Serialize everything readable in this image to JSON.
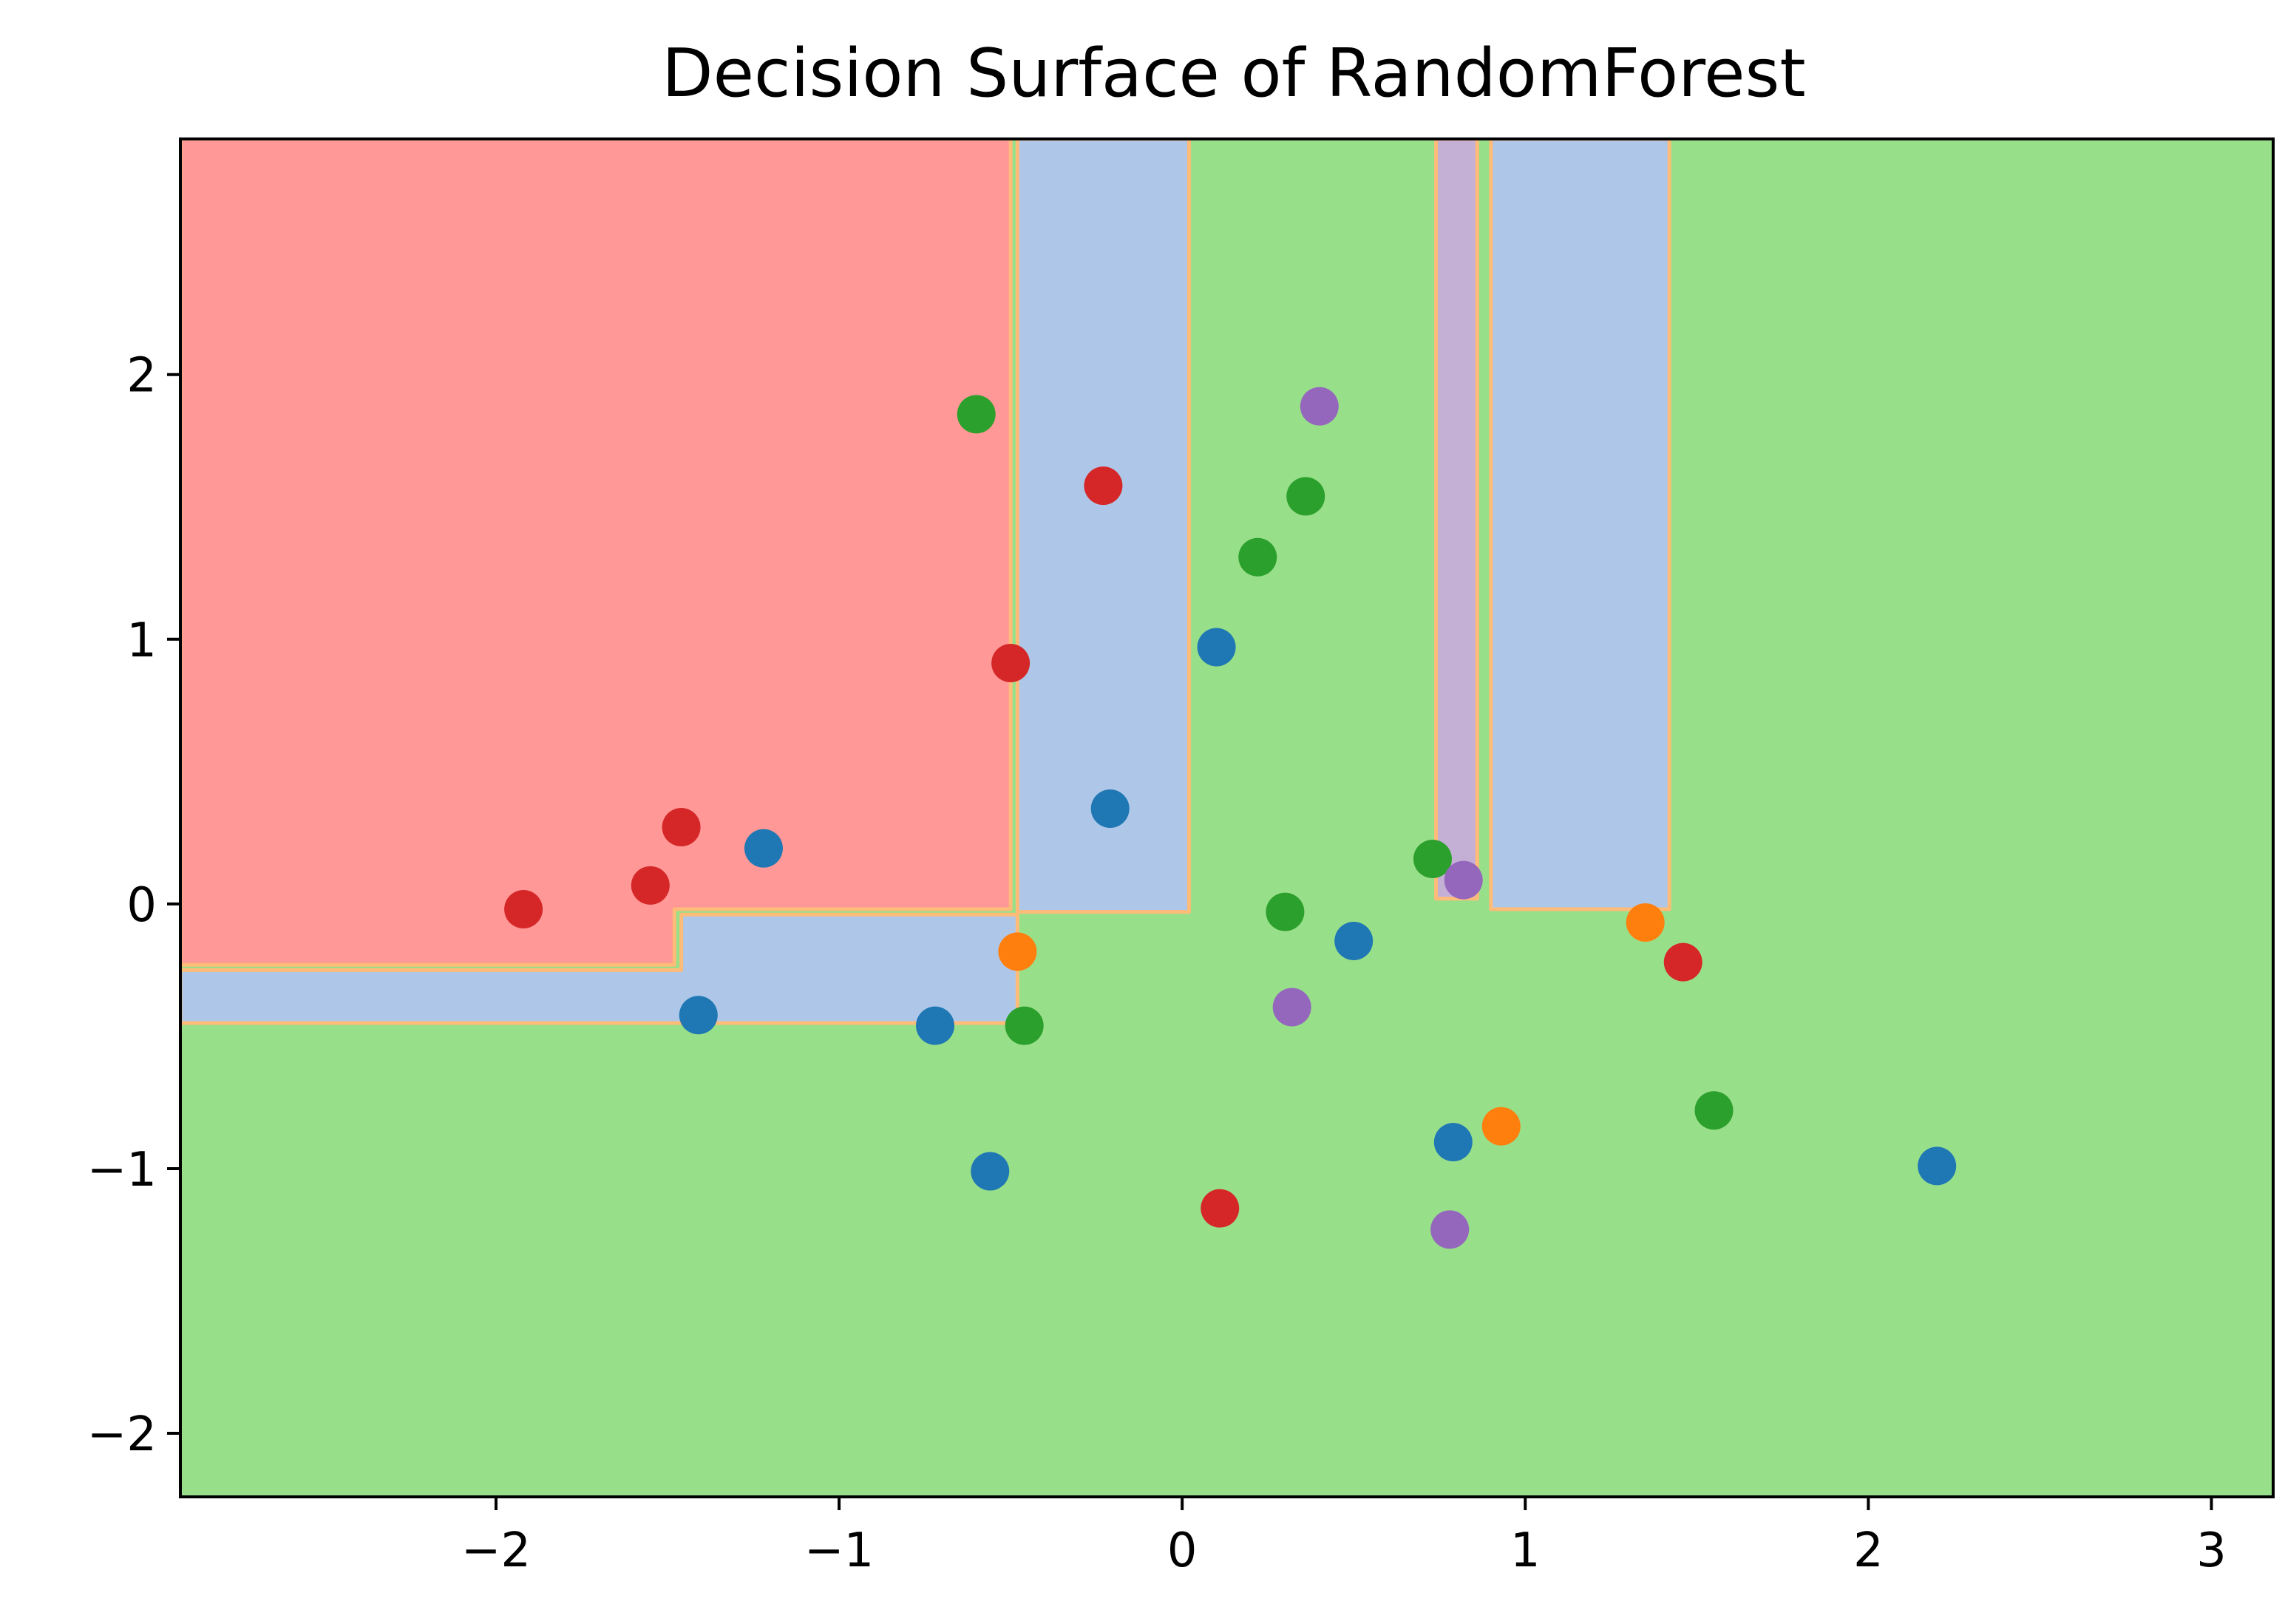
{
  "chart_data": {
    "type": "scatter",
    "title": "Decision Surface of RandomForest",
    "xlabel": "",
    "ylabel": "",
    "xlim": [
      -2.92,
      3.18
    ],
    "ylim": [
      -2.24,
      2.89
    ],
    "grid": false,
    "x_ticks": [
      -2,
      -1,
      0,
      1,
      2,
      3
    ],
    "x_tick_labels": [
      "−2",
      "−1",
      "0",
      "1",
      "2",
      "3"
    ],
    "y_ticks": [
      -2,
      -1,
      0,
      1,
      2
    ],
    "y_tick_labels": [
      "−2",
      "−1",
      "0",
      "1",
      "2"
    ],
    "region_colors": {
      "red": "#ff9896",
      "blue": "#aec7e8",
      "green": "#98df8a",
      "purple": "#c5b0d5",
      "boundary": "#ffbb78"
    },
    "decision_regions": [
      {
        "class": "red",
        "polygon": [
          [
            -2.92,
            2.89
          ],
          [
            -0.5,
            2.89
          ],
          [
            -0.5,
            -0.02
          ],
          [
            -1.48,
            -0.02
          ],
          [
            -1.48,
            -0.23
          ],
          [
            -2.92,
            -0.23
          ]
        ]
      },
      {
        "class": "blue",
        "polygon": [
          [
            -0.48,
            2.89
          ],
          [
            0.02,
            2.89
          ],
          [
            0.02,
            -0.03
          ],
          [
            -0.48,
            -0.03
          ]
        ]
      },
      {
        "class": "blue",
        "polygon": [
          [
            -2.92,
            -0.25
          ],
          [
            -1.46,
            -0.25
          ],
          [
            -1.46,
            -0.04
          ],
          [
            -0.48,
            -0.04
          ],
          [
            -0.48,
            -0.45
          ],
          [
            -2.92,
            -0.45
          ]
        ]
      },
      {
        "class": "purple",
        "polygon": [
          [
            0.74,
            2.89
          ],
          [
            0.86,
            2.89
          ],
          [
            0.86,
            0.02
          ],
          [
            0.74,
            0.02
          ]
        ]
      },
      {
        "class": "blue",
        "polygon": [
          [
            0.9,
            2.89
          ],
          [
            1.42,
            2.89
          ],
          [
            1.42,
            -0.02
          ],
          [
            0.9,
            -0.02
          ]
        ]
      }
    ],
    "series": [
      {
        "color": "#1f77b4",
        "points": [
          [
            -1.22,
            0.21
          ],
          [
            -1.41,
            -0.42
          ],
          [
            -0.72,
            -0.46
          ],
          [
            -0.56,
            -1.01
          ],
          [
            -0.21,
            0.36
          ],
          [
            0.1,
            0.97
          ],
          [
            0.5,
            -0.14
          ],
          [
            0.79,
            -0.9
          ],
          [
            2.2,
            -0.99
          ]
        ]
      },
      {
        "color": "#ff7f0e",
        "points": [
          [
            -0.48,
            -0.18
          ],
          [
            0.93,
            -0.84
          ],
          [
            1.35,
            -0.07
          ]
        ]
      },
      {
        "color": "#2ca02c",
        "points": [
          [
            -0.6,
            1.85
          ],
          [
            0.22,
            1.31
          ],
          [
            0.36,
            1.54
          ],
          [
            -0.46,
            -0.46
          ],
          [
            0.3,
            -0.03
          ],
          [
            0.73,
            0.17
          ],
          [
            1.55,
            -0.78
          ]
        ]
      },
      {
        "color": "#d62728",
        "points": [
          [
            -0.23,
            1.58
          ],
          [
            -0.5,
            0.91
          ],
          [
            -1.46,
            0.29
          ],
          [
            -1.55,
            0.07
          ],
          [
            -1.92,
            -0.02
          ],
          [
            0.11,
            -1.15
          ],
          [
            1.46,
            -0.22
          ]
        ]
      },
      {
        "color": "#9467bd",
        "points": [
          [
            0.4,
            1.88
          ],
          [
            0.82,
            0.09
          ],
          [
            0.32,
            -0.39
          ],
          [
            0.78,
            -1.23
          ]
        ]
      }
    ]
  }
}
